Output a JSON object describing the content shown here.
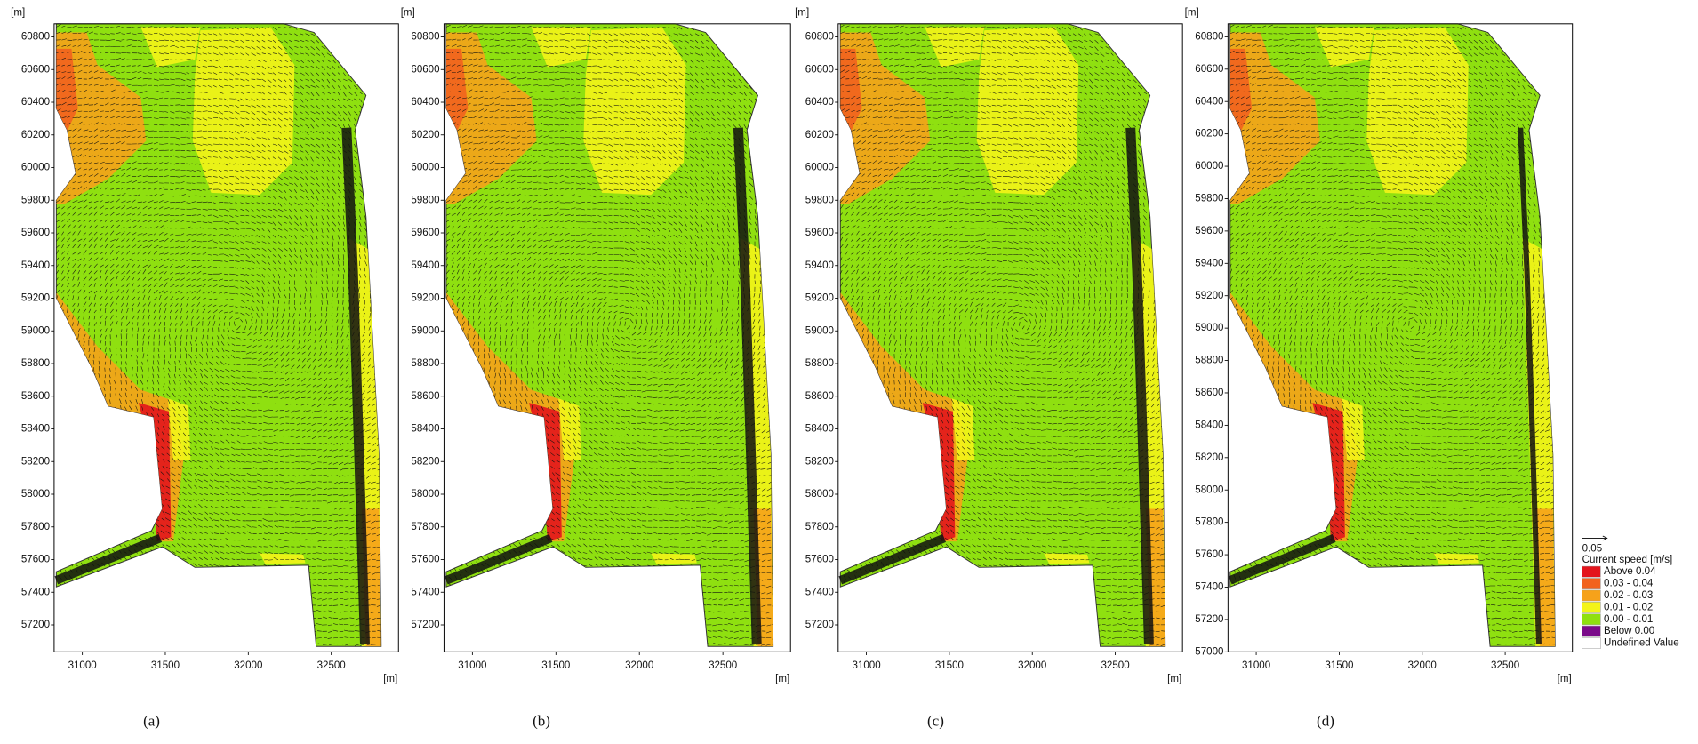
{
  "chart_data": [
    {
      "type": "map",
      "panel_label": "(a)",
      "x_label": "[m]",
      "y_label": "[m]",
      "xlim": [
        30830,
        32905
      ],
      "ylim": [
        57035,
        60880
      ],
      "xticks": [
        31000,
        31500,
        32000,
        32500
      ],
      "yticks": [
        57200,
        57400,
        57600,
        57800,
        58000,
        58200,
        58400,
        58600,
        58800,
        59000,
        59200,
        59400,
        59600,
        59800,
        60000,
        60200,
        60400,
        60600,
        60800
      ]
    },
    {
      "type": "map",
      "panel_label": "(b)",
      "x_label": "[m]",
      "y_label": "[m]",
      "xlim": [
        30830,
        32905
      ],
      "ylim": [
        57035,
        60880
      ],
      "xticks": [
        31000,
        31500,
        32000,
        32500
      ],
      "yticks": [
        57200,
        57400,
        57600,
        57800,
        58000,
        58200,
        58400,
        58600,
        58800,
        59000,
        59200,
        59400,
        59600,
        59800,
        60000,
        60200,
        60400,
        60600,
        60800
      ]
    },
    {
      "type": "map",
      "panel_label": "(c)",
      "x_label": "[m]",
      "y_label": "[m]",
      "xlim": [
        30830,
        32905
      ],
      "ylim": [
        57035,
        60880
      ],
      "xticks": [
        31000,
        31500,
        32000,
        32500
      ],
      "yticks": [
        57200,
        57400,
        57600,
        57800,
        58000,
        58200,
        58400,
        58600,
        58800,
        59000,
        59200,
        59400,
        59600,
        59800,
        60000,
        60200,
        60400,
        60600,
        60800
      ]
    },
    {
      "type": "map",
      "panel_label": "(d)",
      "x_label": "[m]",
      "y_label": "[m]",
      "xlim": [
        30830,
        32905
      ],
      "ylim": [
        57000,
        60880
      ],
      "xticks": [
        31000,
        31500,
        32000,
        32500
      ],
      "yticks": [
        57000,
        57200,
        57400,
        57600,
        57800,
        58000,
        58200,
        58400,
        58600,
        58800,
        59000,
        59200,
        59400,
        59600,
        59800,
        60000,
        60200,
        60400,
        60600,
        60800
      ]
    }
  ],
  "legend": {
    "vector_scale": 0.05,
    "title": "Current speed [m/s]",
    "items": [
      {
        "label": "Above 0.04",
        "color": "#e3141c"
      },
      {
        "label": "0.03 - 0.04",
        "color": "#f2621e"
      },
      {
        "label": "0.02 - 0.03",
        "color": "#f6a21a"
      },
      {
        "label": "0.01 - 0.02",
        "color": "#f4f418"
      },
      {
        "label": "0.00 - 0.01",
        "color": "#8fe010"
      },
      {
        "label": "Below 0.00",
        "color": "#7a0a8a"
      },
      {
        "label": "Undefined Value",
        "color": "#ffffff"
      }
    ]
  }
}
